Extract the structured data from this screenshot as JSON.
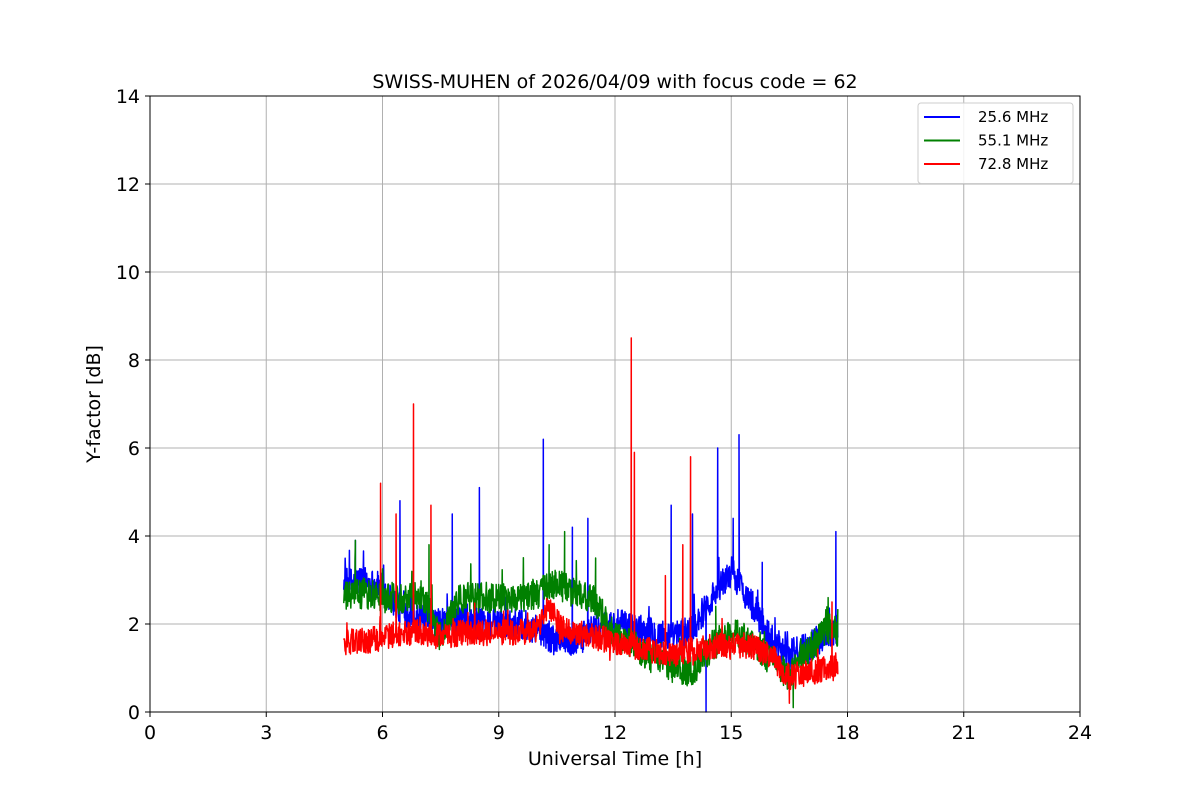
{
  "chart_data": {
    "type": "line",
    "title": "SWISS-MUHEN of 2026/04/09 with focus code = 62",
    "xlabel": "Universal Time [h]",
    "ylabel": "Y-factor [dB]",
    "xlim": [
      0,
      24
    ],
    "ylim": [
      0,
      14
    ],
    "xticks": [
      0,
      3,
      6,
      9,
      12,
      15,
      18,
      21,
      24
    ],
    "yticks": [
      0,
      2,
      4,
      6,
      8,
      10,
      12,
      14
    ],
    "grid": true,
    "legend_position": "top-right",
    "series": [
      {
        "name": "25.6 MHz",
        "color": "#0000ff",
        "base": [
          [
            5.0,
            2.9
          ],
          [
            5.5,
            3.0
          ],
          [
            6.0,
            2.8
          ],
          [
            6.5,
            2.3
          ],
          [
            7.0,
            2.1
          ],
          [
            7.5,
            2.0
          ],
          [
            8.0,
            2.1
          ],
          [
            8.5,
            2.0
          ],
          [
            9.0,
            2.0
          ],
          [
            9.5,
            2.0
          ],
          [
            10.0,
            1.9
          ],
          [
            10.5,
            1.6
          ],
          [
            11.0,
            1.6
          ],
          [
            11.5,
            1.9
          ],
          [
            12.0,
            2.0
          ],
          [
            12.5,
            1.9
          ],
          [
            13.0,
            1.8
          ],
          [
            13.5,
            1.7
          ],
          [
            14.0,
            1.9
          ],
          [
            14.5,
            2.6
          ],
          [
            15.0,
            3.2
          ],
          [
            15.5,
            2.5
          ],
          [
            16.0,
            1.7
          ],
          [
            16.5,
            1.3
          ],
          [
            17.0,
            1.5
          ],
          [
            17.5,
            1.8
          ],
          [
            17.75,
            1.9
          ]
        ],
        "noise": 0.35,
        "spikes": [
          [
            5.3,
            3.9
          ],
          [
            6.45,
            4.8
          ],
          [
            7.8,
            4.5
          ],
          [
            8.5,
            5.1
          ],
          [
            10.15,
            6.2
          ],
          [
            10.9,
            4.2
          ],
          [
            11.3,
            4.4
          ],
          [
            13.45,
            4.7
          ],
          [
            14.0,
            4.5
          ],
          [
            14.35,
            0.0
          ],
          [
            14.65,
            6.0
          ],
          [
            15.05,
            4.4
          ],
          [
            15.2,
            6.3
          ],
          [
            15.8,
            3.4
          ],
          [
            17.7,
            4.1
          ]
        ]
      },
      {
        "name": "55.1 MHz",
        "color": "#008000",
        "base": [
          [
            5.0,
            2.6
          ],
          [
            5.5,
            2.7
          ],
          [
            6.0,
            2.6
          ],
          [
            6.5,
            2.6
          ],
          [
            7.0,
            2.7
          ],
          [
            7.5,
            1.7
          ],
          [
            8.0,
            2.6
          ],
          [
            8.5,
            2.6
          ],
          [
            9.0,
            2.6
          ],
          [
            9.5,
            2.6
          ],
          [
            10.0,
            2.7
          ],
          [
            10.5,
            2.9
          ],
          [
            11.0,
            2.7
          ],
          [
            11.5,
            2.5
          ],
          [
            12.0,
            1.7
          ],
          [
            12.5,
            1.5
          ],
          [
            13.0,
            1.2
          ],
          [
            13.5,
            1.0
          ],
          [
            14.0,
            0.9
          ],
          [
            14.5,
            1.5
          ],
          [
            15.0,
            1.8
          ],
          [
            15.5,
            1.6
          ],
          [
            16.0,
            1.2
          ],
          [
            16.5,
            0.8
          ],
          [
            17.0,
            1.4
          ],
          [
            17.5,
            1.9
          ],
          [
            17.75,
            1.8
          ]
        ],
        "noise": 0.35,
        "spikes": [
          [
            5.3,
            3.9
          ],
          [
            7.2,
            3.8
          ],
          [
            10.3,
            3.8
          ],
          [
            10.7,
            4.1
          ],
          [
            11.5,
            3.5
          ],
          [
            14.6,
            2.4
          ],
          [
            16.6,
            0.1
          ],
          [
            17.5,
            2.6
          ]
        ]
      },
      {
        "name": "72.8 MHz",
        "color": "#ff0000",
        "base": [
          [
            5.0,
            1.6
          ],
          [
            5.5,
            1.6
          ],
          [
            6.0,
            1.7
          ],
          [
            6.5,
            1.8
          ],
          [
            7.0,
            1.8
          ],
          [
            7.5,
            1.7
          ],
          [
            8.0,
            1.8
          ],
          [
            8.5,
            1.8
          ],
          [
            9.0,
            1.8
          ],
          [
            9.5,
            1.8
          ],
          [
            10.0,
            1.9
          ],
          [
            10.3,
            2.4
          ],
          [
            10.6,
            1.9
          ],
          [
            11.0,
            1.8
          ],
          [
            11.5,
            1.7
          ],
          [
            12.0,
            1.6
          ],
          [
            12.5,
            1.5
          ],
          [
            13.0,
            1.4
          ],
          [
            13.5,
            1.3
          ],
          [
            14.0,
            1.4
          ],
          [
            14.5,
            1.5
          ],
          [
            15.0,
            1.5
          ],
          [
            15.5,
            1.5
          ],
          [
            16.0,
            1.3
          ],
          [
            16.5,
            0.8
          ],
          [
            17.0,
            0.9
          ],
          [
            17.5,
            1.0
          ],
          [
            17.75,
            1.0
          ]
        ],
        "noise": 0.3,
        "spikes": [
          [
            5.95,
            5.2
          ],
          [
            6.35,
            4.5
          ],
          [
            6.8,
            7.0
          ],
          [
            7.25,
            4.7
          ],
          [
            12.42,
            8.5
          ],
          [
            12.5,
            5.9
          ],
          [
            13.3,
            3.1
          ],
          [
            13.75,
            3.8
          ],
          [
            13.95,
            5.8
          ],
          [
            16.5,
            0.2
          ],
          [
            17.6,
            2.5
          ]
        ]
      }
    ]
  }
}
